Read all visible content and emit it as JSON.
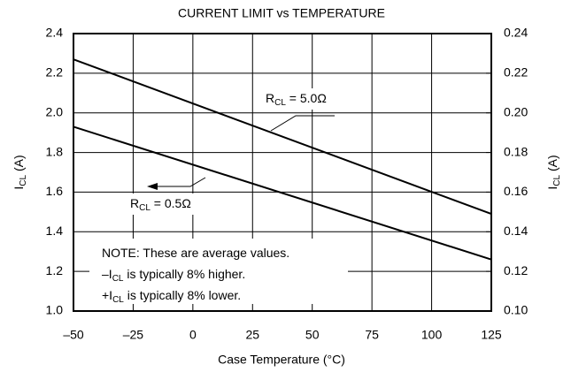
{
  "chart_data": {
    "type": "line",
    "title": "CURRENT LIMIT vs TEMPERATURE",
    "x_label": "Case Temperature (°C)",
    "y_label": {
      "base": "I",
      "sub": "CL",
      "rest": " (A)"
    },
    "y2_label": {
      "base": "I",
      "sub": "CL",
      "rest": " (A)"
    },
    "x": [
      -50,
      125
    ],
    "series": [
      {
        "name": {
          "base": "R",
          "sub": "CL",
          "rest": " = 5.0Ω"
        },
        "color": "#000000",
        "values": [
          2.27,
          1.49
        ]
      },
      {
        "name": {
          "base": "R",
          "sub": "CL",
          "rest": " = 0.5Ω"
        },
        "color": "#000000",
        "values": [
          1.93,
          1.26
        ]
      }
    ],
    "notes": [
      {
        "text": "NOTE: These are average values."
      },
      {
        "base": "–I",
        "sub": "CL",
        "rest": " is typically 8% higher."
      },
      {
        "base": "+I",
        "sub": "CL",
        "rest": " is typically 8% lower."
      }
    ],
    "xlim": [
      -50,
      125
    ],
    "xticks": [
      {
        "value": -50,
        "label": "–50"
      },
      {
        "value": -25,
        "label": "–25"
      },
      0,
      25,
      50,
      75,
      100,
      125
    ],
    "ylim": [
      1.0,
      2.4
    ],
    "yticks": [
      {
        "value": 1.0,
        "label": "1.0"
      },
      1.2,
      1.4,
      1.6,
      1.8,
      {
        "value": 2.0,
        "label": "2.0"
      },
      2.2,
      2.4
    ],
    "y2lim": [
      0.1,
      0.24
    ],
    "y2ticks": [
      {
        "value": 0.1,
        "label": "0.10"
      },
      0.12,
      0.14,
      0.16,
      0.18,
      {
        "value": 0.2,
        "label": "0.20"
      },
      0.22,
      0.24
    ],
    "grid": true
  }
}
